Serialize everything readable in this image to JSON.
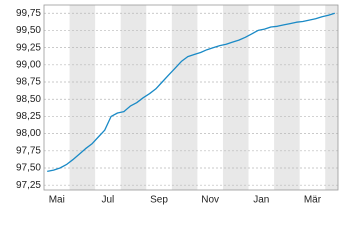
{
  "chart_data": {
    "type": "line",
    "categories": [
      "Mai",
      null,
      null,
      null,
      null,
      null,
      null,
      null,
      "Jul",
      null,
      null,
      null,
      null,
      null,
      null,
      null,
      "Sep",
      null,
      null,
      null,
      null,
      null,
      null,
      null,
      "Nov",
      null,
      null,
      null,
      null,
      null,
      null,
      null,
      "Jan",
      null,
      null,
      null,
      null,
      null,
      null,
      null,
      "Mär",
      null,
      null,
      null,
      null,
      null
    ],
    "series": [
      {
        "color": "#1a8ac6",
        "values": [
          97.45,
          97.47,
          97.5,
          97.55,
          97.62,
          97.7,
          97.78,
          97.85,
          97.95,
          98.05,
          98.25,
          98.3,
          98.32,
          98.4,
          98.45,
          98.52,
          98.58,
          98.65,
          98.75,
          98.85,
          98.95,
          99.05,
          99.12,
          99.15,
          99.18,
          99.22,
          99.25,
          99.28,
          99.3,
          99.33,
          99.36,
          99.4,
          99.45,
          99.5,
          99.52,
          99.55,
          99.56,
          99.58,
          99.6,
          99.62,
          99.63,
          99.65,
          99.67,
          99.7,
          99.72,
          99.75
        ]
      }
    ],
    "ylim": [
      97.18,
      99.87
    ],
    "yticks": [
      {
        "value": 97.25,
        "label": "97,25"
      },
      {
        "value": 97.5,
        "label": "97,50"
      },
      {
        "value": 97.75,
        "label": "97,75"
      },
      {
        "value": 98,
        "label": "98,00"
      },
      {
        "value": 98.25,
        "label": "98,25"
      },
      {
        "value": 98.5,
        "label": "98,50"
      },
      {
        "value": 98.75,
        "label": "98,75"
      },
      {
        "value": 99,
        "label": "99,00"
      },
      {
        "value": 99.25,
        "label": "99,25"
      },
      {
        "value": 99.5,
        "label": "99,50"
      },
      {
        "value": 99.75,
        "label": "99,75"
      }
    ],
    "grid": true
  }
}
